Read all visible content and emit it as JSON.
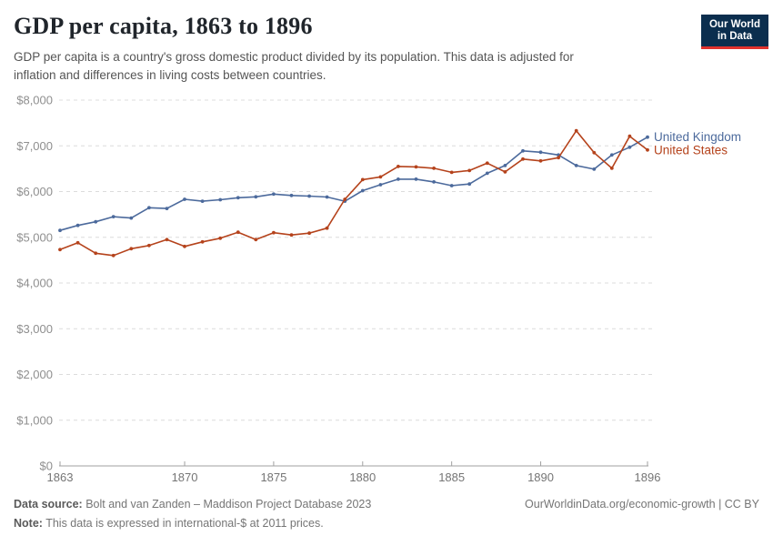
{
  "header": {
    "title": "GDP per capita, 1863 to 1896",
    "subtitle_line1": "GDP per capita is a country's gross domestic product divided by its population. This data is adjusted for",
    "subtitle_line2": "inflation and differences in living costs between countries.",
    "logo": {
      "line1": "Our World",
      "line2": "in Data",
      "bg_color": "#0b2e4e",
      "stripe_color": "#e0322d"
    }
  },
  "chart_data": {
    "type": "line",
    "title": "GDP per capita, 1863 to 1896",
    "xlabel": "",
    "ylabel": "",
    "x": [
      1863,
      1864,
      1865,
      1866,
      1867,
      1868,
      1869,
      1870,
      1871,
      1872,
      1873,
      1874,
      1875,
      1876,
      1877,
      1878,
      1879,
      1880,
      1881,
      1882,
      1883,
      1884,
      1885,
      1886,
      1887,
      1888,
      1889,
      1890,
      1891,
      1892,
      1893,
      1894,
      1895,
      1896
    ],
    "series": [
      {
        "name": "United Kingdom",
        "color": "#4C6A9C",
        "values": [
          5150,
          5260,
          5340,
          5450,
          5420,
          5645,
          5630,
          5830,
          5790,
          5820,
          5865,
          5885,
          5945,
          5915,
          5900,
          5880,
          5790,
          6020,
          6150,
          6270,
          6270,
          6210,
          6130,
          6165,
          6400,
          6570,
          6890,
          6860,
          6800,
          6570,
          6490,
          6800,
          6970,
          7190
        ]
      },
      {
        "name": "United States",
        "color": "#B5431C",
        "values": [
          4730,
          4880,
          4650,
          4600,
          4750,
          4820,
          4950,
          4800,
          4900,
          4980,
          5110,
          4950,
          5100,
          5050,
          5090,
          5200,
          5830,
          6260,
          6320,
          6550,
          6540,
          6510,
          6420,
          6460,
          6620,
          6430,
          6710,
          6670,
          6740,
          7330,
          6850,
          6510,
          7210,
          6910
        ]
      }
    ],
    "ylim": [
      0,
      8000
    ],
    "ytick_values": [
      0,
      1000,
      2000,
      3000,
      4000,
      5000,
      6000,
      7000,
      8000
    ],
    "ytick_labels": [
      "$0",
      "$1,000",
      "$2,000",
      "$3,000",
      "$4,000",
      "$5,000",
      "$6,000",
      "$7,000",
      "$8,000"
    ],
    "xtick_values": [
      1863,
      1870,
      1875,
      1880,
      1885,
      1890,
      1896
    ],
    "xtick_labels": [
      "1863",
      "1870",
      "1875",
      "1880",
      "1885",
      "1890",
      "1896"
    ],
    "grid": "horizontal-dashed",
    "legend_position": "end-of-line-labels"
  },
  "footer": {
    "source_label": "Data source:",
    "source_text": " Bolt and van Zanden – Maddison Project Database 2023",
    "link_text": "OurWorldinData.org/economic-growth | CC BY",
    "note_label": "Note:",
    "note_text": " This data is expressed in international-$ at 2011 prices."
  }
}
